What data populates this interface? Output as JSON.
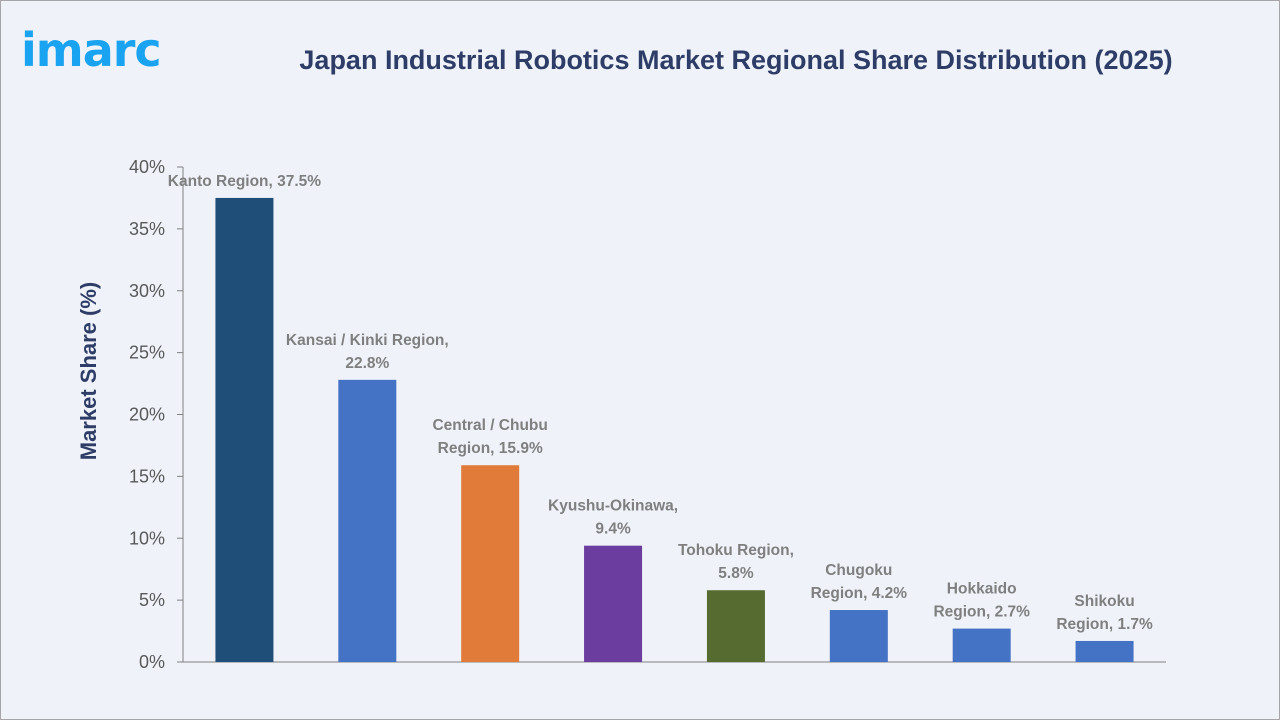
{
  "logo": "imarc",
  "chart_data": {
    "type": "bar",
    "title": "Japan Industrial Robotics Market Regional Share Distribution (2025)",
    "xlabel": "",
    "ylabel": "Market Share (%)",
    "ylim": [
      0,
      40
    ],
    "yticks": [
      0,
      5,
      10,
      15,
      20,
      25,
      30,
      35,
      40
    ],
    "ytick_labels": [
      "0%",
      "5%",
      "10%",
      "15%",
      "20%",
      "25%",
      "30%",
      "35%",
      "40%"
    ],
    "grid": false,
    "categories": [
      "Kanto Region",
      "Kansai / Kinki Region",
      "Central / Chubu Region",
      "Kyushu-Okinawa",
      "Tohoku Region",
      "Chugoku Region",
      "Hokkaido Region",
      "Shikoku Region"
    ],
    "values": [
      37.5,
      22.8,
      15.9,
      9.4,
      5.8,
      4.2,
      2.7,
      1.7
    ],
    "data_labels": [
      [
        "Kanto Region, 37.5%"
      ],
      [
        "Kansai / Kinki Region,",
        "22.8%"
      ],
      [
        "Central / Chubu",
        "Region, 15.9%"
      ],
      [
        "Kyushu-Okinawa,",
        "9.4%"
      ],
      [
        "Tohoku Region,",
        "5.8%"
      ],
      [
        "Chugoku",
        "Region, 4.2%"
      ],
      [
        "Hokkaido",
        "Region, 2.7%"
      ],
      [
        "Shikoku",
        "Region, 1.7%"
      ]
    ],
    "colors": [
      "#1f4e79",
      "#4472c4",
      "#e07b39",
      "#6b3d9e",
      "#556b2f",
      "#4472c4",
      "#4472c4",
      "#4472c4"
    ]
  }
}
